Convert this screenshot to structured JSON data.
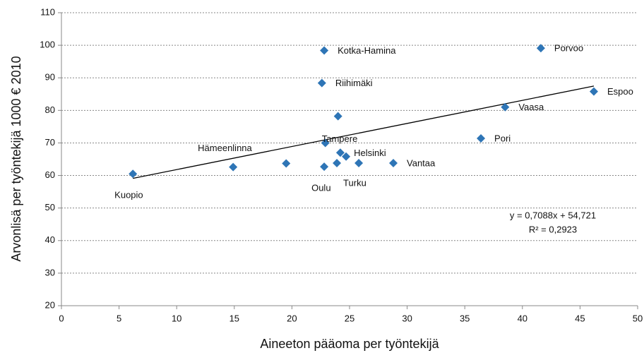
{
  "chart_data": {
    "type": "scatter",
    "x_label": "Aineeton pääoma per työntekijä",
    "y_label": "Arvonlisä per työntekijä  1000 € 2010",
    "color": "#2e75b6",
    "points": [
      {
        "x": 6.2,
        "y": 60.5,
        "label": "Kuopio"
      },
      {
        "x": 14.9,
        "y": 62.6,
        "label": "Hämeenlinna"
      },
      {
        "x": 19.5,
        "y": 63.7,
        "label": null
      },
      {
        "x": 22.8,
        "y": 62.7,
        "label": "Oulu"
      },
      {
        "x": 23.9,
        "y": 63.8,
        "label": null
      },
      {
        "x": 22.9,
        "y": 70.0,
        "label": "Tampere"
      },
      {
        "x": 24.0,
        "y": 78.2,
        "label": null
      },
      {
        "x": 24.2,
        "y": 67.0,
        "label": null
      },
      {
        "x": 24.7,
        "y": 65.8,
        "label": "Helsinki"
      },
      {
        "x": 25.8,
        "y": 63.8,
        "label": "Turku"
      },
      {
        "x": 28.8,
        "y": 63.8,
        "label": "Vantaa"
      },
      {
        "x": 22.6,
        "y": 88.4,
        "label": "Riihimäki"
      },
      {
        "x": 22.8,
        "y": 98.4,
        "label": "Kotka-Hamina"
      },
      {
        "x": 36.4,
        "y": 71.4,
        "label": "Pori"
      },
      {
        "x": 38.5,
        "y": 81.0,
        "label": "Vaasa"
      },
      {
        "x": 41.6,
        "y": 99.1,
        "label": "Porvoo"
      },
      {
        "x": 46.2,
        "y": 85.8,
        "label": "Espoo"
      }
    ],
    "trendline": {
      "slope": 0.7088,
      "intercept": 54.721,
      "x_range": [
        6.2,
        46.2
      ],
      "equation": "y = 0,7088x + 54,721",
      "r2_label": "R² = 0,2923"
    },
    "xlim": [
      0,
      50
    ],
    "xticks": [
      0,
      5,
      10,
      15,
      20,
      25,
      30,
      35,
      40,
      45,
      50
    ],
    "ylim": [
      20,
      110
    ],
    "yticks": [
      20,
      30,
      40,
      50,
      60,
      70,
      80,
      90,
      100,
      110
    ],
    "grid": true
  }
}
